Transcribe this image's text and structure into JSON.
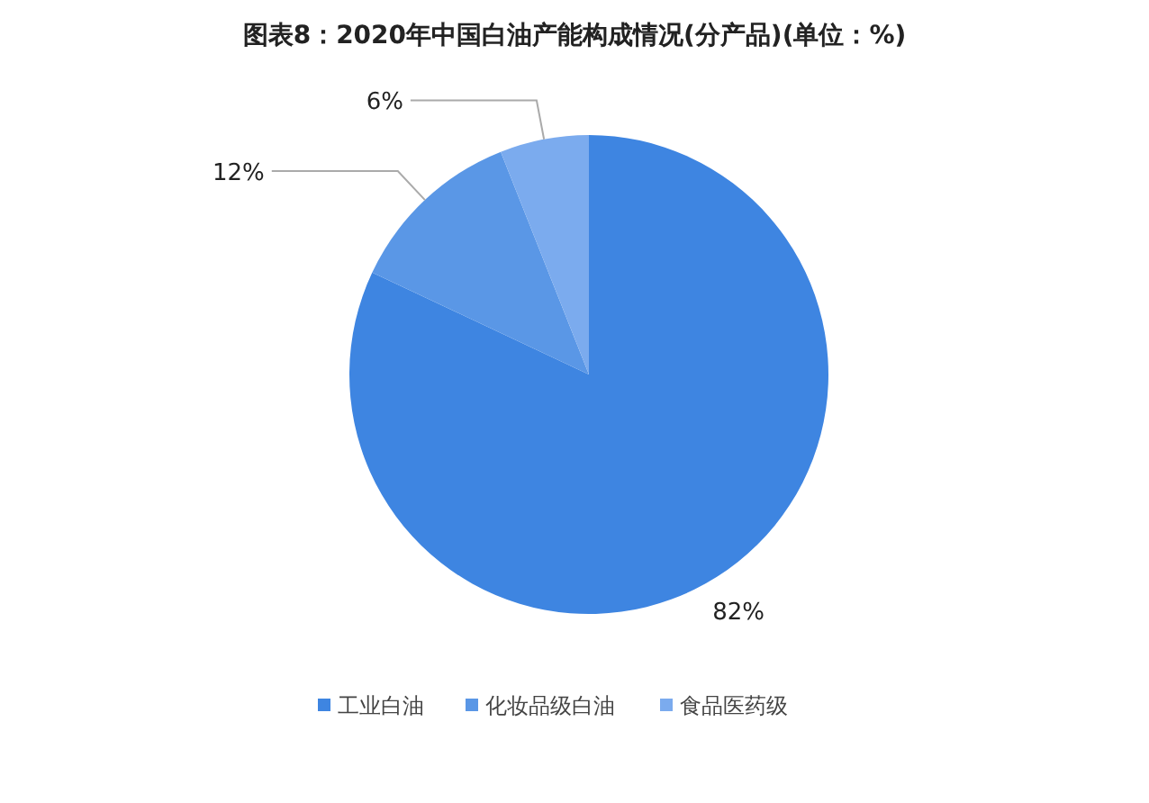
{
  "chart_data": {
    "type": "pie",
    "title": "图表8：2020年中国白油产能构成情况(分产品)(单位：%)",
    "categories": [
      "工业白油",
      "化妆品级白油",
      "食品医药级"
    ],
    "values": [
      82,
      12,
      6
    ],
    "colors": [
      "#3e85e1",
      "#5a97e6",
      "#7babee"
    ],
    "value_labels": [
      "82%",
      "12%",
      "6%"
    ],
    "legend": "bottom"
  }
}
